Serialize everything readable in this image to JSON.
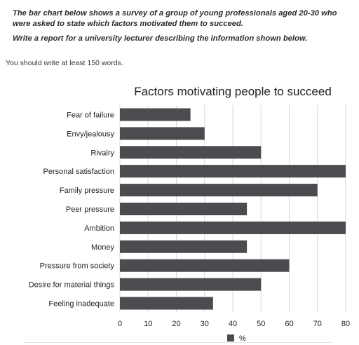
{
  "task": {
    "paragraph1": "The bar chart below shows a survey of a group of young professionals aged 20-30 who were asked to state which factors motivated them to succeed.",
    "paragraph2": "Write a report for a university lecturer describing the information shown below."
  },
  "instruction": "You should write at least 150 words.",
  "chart_data": {
    "type": "bar",
    "orientation": "horizontal",
    "title": "Factors motivating people to succeed",
    "categories": [
      "Fear of failure",
      "Envy/jealousy",
      "Rivalry",
      "Personal satisfaction",
      "Family pressure",
      "Peer pressure",
      "Ambition",
      "Money",
      "Pressure from society",
      "Desire for material things",
      "Feeling inadequate"
    ],
    "series": [
      {
        "name": "%",
        "values": [
          25,
          30,
          50,
          80,
          70,
          45,
          80,
          45,
          60,
          50,
          33
        ]
      }
    ],
    "xlim": [
      0,
      80
    ],
    "xticks": [
      0,
      10,
      20,
      30,
      40,
      50,
      60,
      70,
      80
    ],
    "grid": true,
    "legend": "bottom",
    "bar_color": "#4b4c50",
    "grid_color": "#d9d9d9"
  }
}
